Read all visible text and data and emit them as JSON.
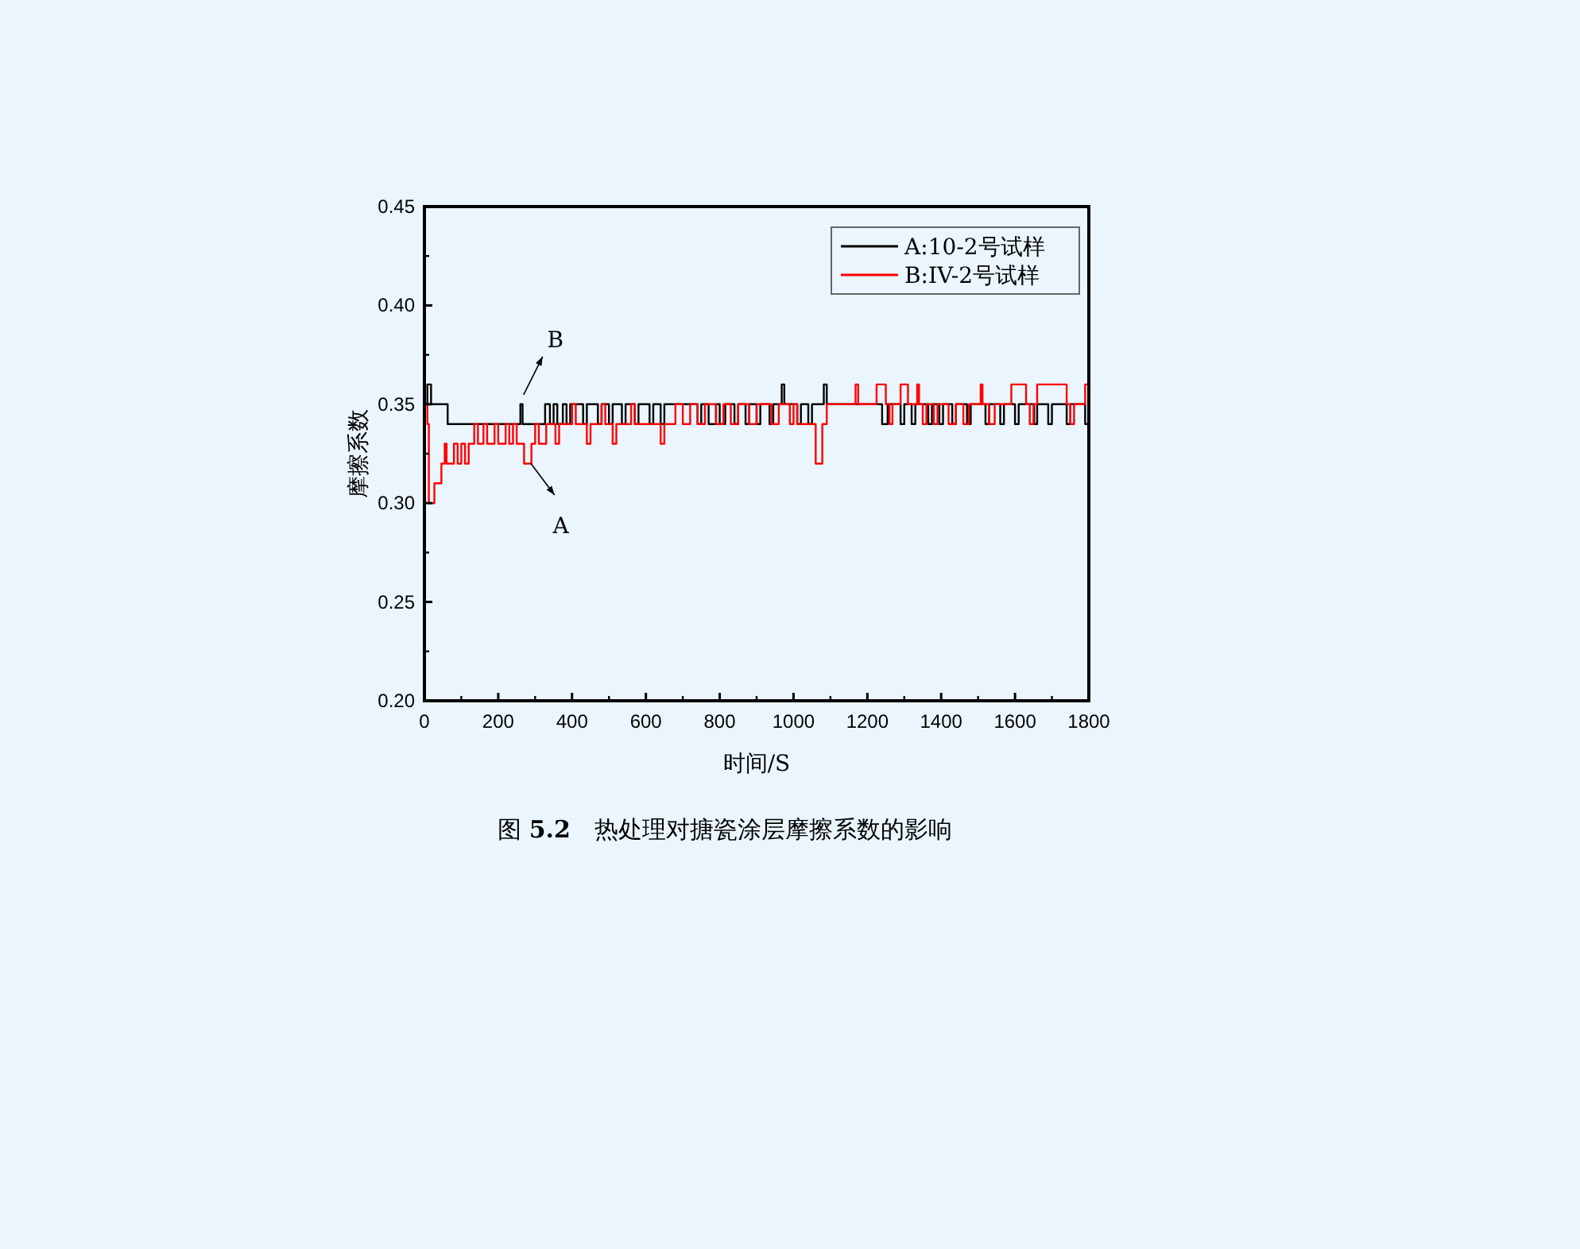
{
  "chart_data": {
    "type": "step",
    "xlabel": "时间/S",
    "ylabel": "摩擦系数",
    "xlim": [
      0,
      1800
    ],
    "ylim": [
      0.2,
      0.45
    ],
    "xticks": [
      0,
      200,
      400,
      600,
      800,
      1000,
      1200,
      1400,
      1600,
      1800
    ],
    "yticks": [
      {
        "value": 0.2,
        "label": "0.20"
      },
      {
        "value": 0.25,
        "label": "0.25"
      },
      {
        "value": 0.3,
        "label": "0.30"
      },
      {
        "value": 0.35,
        "label": "0.35"
      },
      {
        "value": 0.4,
        "label": "0.40"
      },
      {
        "value": 0.45,
        "label": "0.45"
      }
    ],
    "legend": "top right",
    "grid": false,
    "series": [
      {
        "name": "A:10-2号试样",
        "color": "#000000",
        "x": [
          0,
          8,
          18,
          63,
          260,
          266,
          327,
          340,
          350,
          360,
          375,
          385,
          395,
          430,
          440,
          470,
          480,
          500,
          510,
          535,
          545,
          570,
          580,
          610,
          620,
          640,
          650,
          740,
          750,
          770,
          790,
          800,
          815,
          840,
          850,
          870,
          880,
          900,
          910,
          935,
          945,
          968,
          975,
          1010,
          1020,
          1040,
          1050,
          1082,
          1090,
          1240,
          1255,
          1290,
          1300,
          1320,
          1330,
          1365,
          1375,
          1395,
          1405,
          1430,
          1440,
          1470,
          1480,
          1520,
          1530,
          1560,
          1570,
          1600,
          1610,
          1652,
          1660,
          1690,
          1700,
          1740,
          1750,
          1790,
          1800
        ],
        "values": [
          0.35,
          0.36,
          0.35,
          0.34,
          0.35,
          0.34,
          0.35,
          0.34,
          0.35,
          0.34,
          0.35,
          0.34,
          0.35,
          0.34,
          0.35,
          0.34,
          0.35,
          0.34,
          0.35,
          0.34,
          0.35,
          0.34,
          0.35,
          0.34,
          0.35,
          0.34,
          0.35,
          0.34,
          0.35,
          0.34,
          0.35,
          0.34,
          0.35,
          0.34,
          0.35,
          0.34,
          0.35,
          0.34,
          0.35,
          0.34,
          0.35,
          0.36,
          0.35,
          0.34,
          0.35,
          0.34,
          0.35,
          0.36,
          0.35,
          0.34,
          0.35,
          0.34,
          0.35,
          0.34,
          0.35,
          0.34,
          0.35,
          0.34,
          0.35,
          0.34,
          0.35,
          0.34,
          0.35,
          0.34,
          0.35,
          0.34,
          0.35,
          0.34,
          0.35,
          0.34,
          0.35,
          0.34,
          0.35,
          0.34,
          0.35,
          0.34,
          0.34
        ]
      },
      {
        "name": "B:IV-2号试样",
        "color": "#ff0000",
        "x": [
          0,
          8,
          12,
          27,
          46,
          55,
          60,
          80,
          90,
          100,
          110,
          120,
          135,
          145,
          160,
          170,
          190,
          200,
          220,
          230,
          240,
          250,
          270,
          290,
          300,
          310,
          330,
          355,
          365,
          400,
          410,
          440,
          450,
          480,
          490,
          510,
          520,
          560,
          570,
          640,
          650,
          680,
          700,
          720,
          740,
          760,
          790,
          810,
          830,
          850,
          880,
          900,
          940,
          960,
          990,
          1000,
          1010,
          1060,
          1078,
          1090,
          1168,
          1175,
          1225,
          1250,
          1260,
          1268,
          1290,
          1310,
          1335,
          1340,
          1350,
          1360,
          1380,
          1390,
          1420,
          1440,
          1460,
          1475,
          1507,
          1512,
          1530,
          1545,
          1590,
          1630,
          1640,
          1650,
          1660,
          1740,
          1750,
          1760,
          1790,
          1800
        ],
        "values": [
          0.35,
          0.34,
          0.3,
          0.31,
          0.32,
          0.33,
          0.32,
          0.33,
          0.32,
          0.33,
          0.32,
          0.33,
          0.34,
          0.33,
          0.34,
          0.33,
          0.34,
          0.33,
          0.34,
          0.33,
          0.34,
          0.33,
          0.32,
          0.33,
          0.34,
          0.33,
          0.34,
          0.33,
          0.34,
          0.35,
          0.34,
          0.33,
          0.34,
          0.35,
          0.34,
          0.33,
          0.34,
          0.35,
          0.34,
          0.33,
          0.34,
          0.35,
          0.34,
          0.35,
          0.34,
          0.35,
          0.34,
          0.35,
          0.34,
          0.35,
          0.34,
          0.35,
          0.34,
          0.35,
          0.34,
          0.35,
          0.34,
          0.32,
          0.34,
          0.35,
          0.36,
          0.35,
          0.36,
          0.35,
          0.34,
          0.35,
          0.36,
          0.35,
          0.36,
          0.35,
          0.34,
          0.35,
          0.34,
          0.35,
          0.34,
          0.35,
          0.34,
          0.35,
          0.36,
          0.35,
          0.34,
          0.35,
          0.36,
          0.35,
          0.34,
          0.35,
          0.36,
          0.35,
          0.34,
          0.35,
          0.36,
          0.36
        ]
      }
    ],
    "annotations": [
      {
        "text": "B",
        "x": 260,
        "y": 0.35
      },
      {
        "text": "A",
        "x": 275,
        "y": 0.325
      },
      "图 **5.2**　热处理对搪瓷涂层摩擦系数的影响"
    ]
  }
}
